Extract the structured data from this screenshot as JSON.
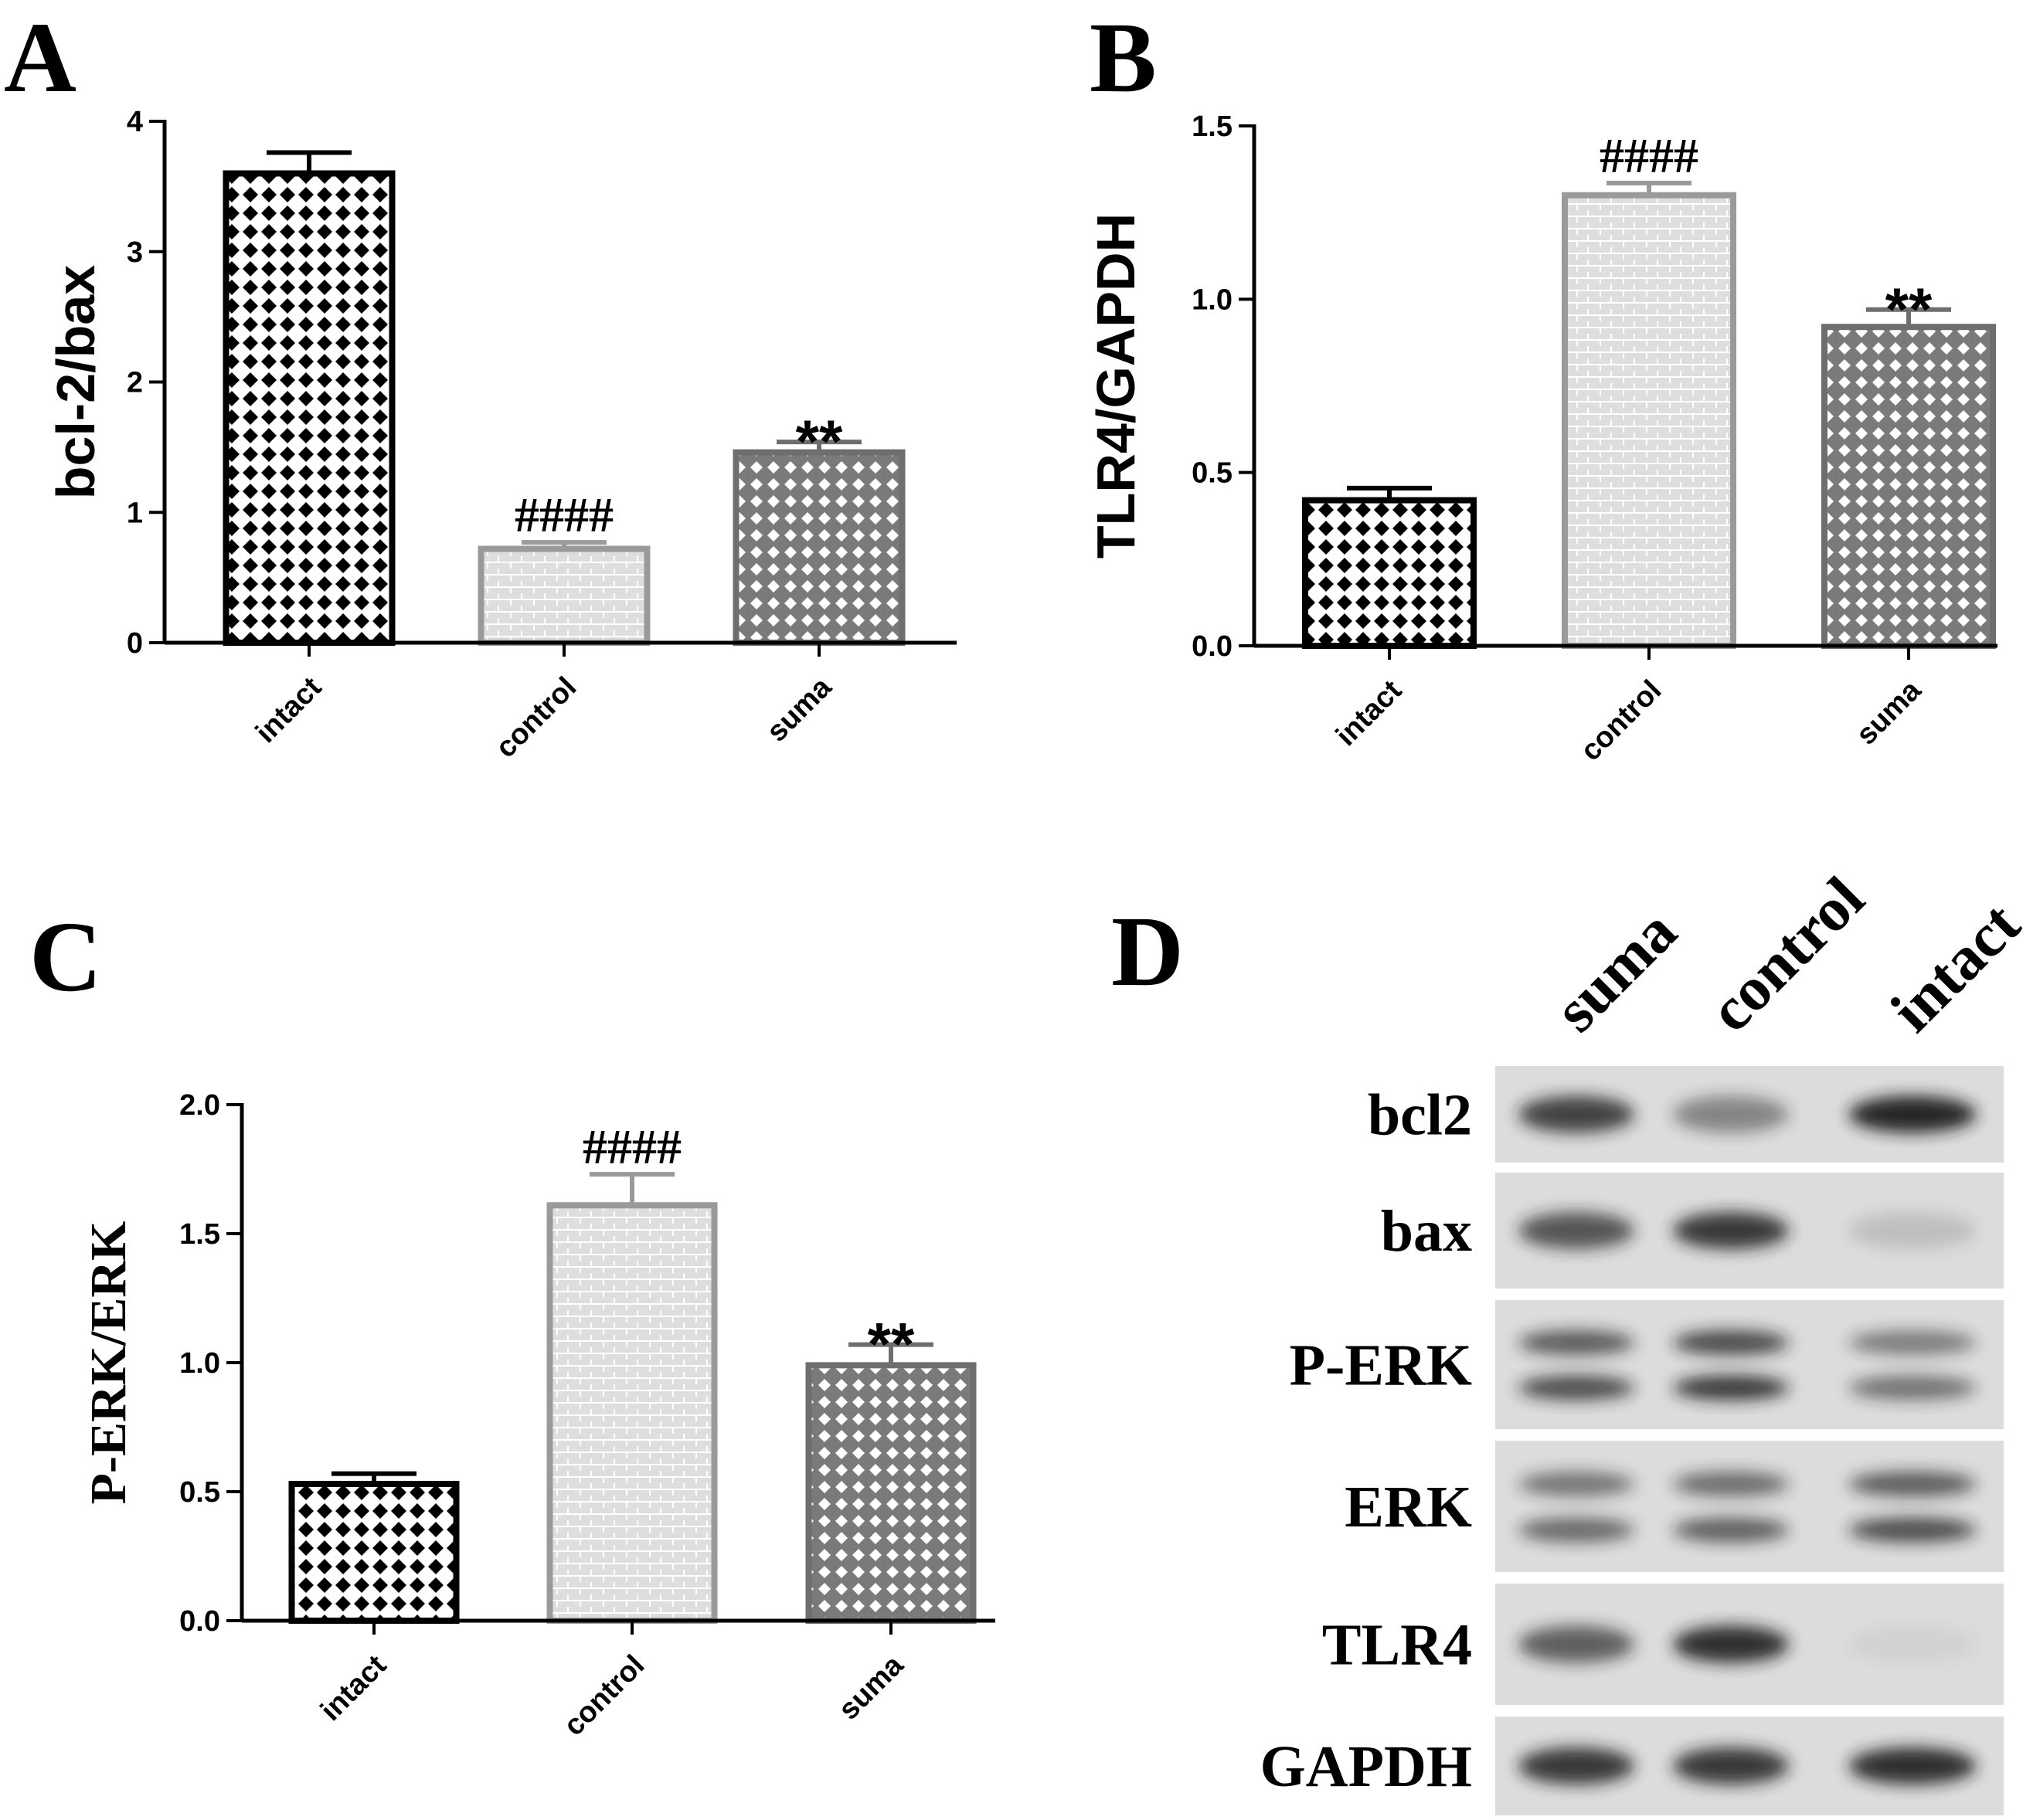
{
  "chart_data": [
    {
      "panel": "A",
      "type": "bar",
      "categories": [
        "intact",
        "control",
        "suma"
      ],
      "values": [
        3.6,
        0.72,
        1.46
      ],
      "errors": [
        0.16,
        0.05,
        0.08
      ],
      "annotations": [
        "",
        "####",
        "**"
      ],
      "ylabel": "bcl-2/bax",
      "ylim": [
        0,
        4
      ],
      "yticks": [
        "0",
        "1",
        "2",
        "3",
        "4"
      ],
      "ytick_values": [
        0,
        1,
        2,
        3,
        4
      ]
    },
    {
      "panel": "B",
      "type": "bar",
      "categories": [
        "intact",
        "control",
        "suma"
      ],
      "values": [
        0.42,
        1.3,
        0.92
      ],
      "errors": [
        0.035,
        0.035,
        0.05
      ],
      "annotations": [
        "",
        "####",
        "**"
      ],
      "ylabel": "TLR4/GAPDH",
      "ylim": [
        0,
        1.5
      ],
      "yticks": [
        "0.0",
        "0.5",
        "1.0",
        "1.5"
      ],
      "ytick_values": [
        0,
        0.5,
        1.0,
        1.5
      ]
    },
    {
      "panel": "C",
      "type": "bar",
      "categories": [
        "intact",
        "control",
        "suma"
      ],
      "values": [
        0.53,
        1.61,
        0.99
      ],
      "errors": [
        0.04,
        0.12,
        0.08
      ],
      "annotations": [
        "",
        "####",
        "**"
      ],
      "ylabel": "P-ERK/ERK",
      "ylim": [
        0,
        2.0
      ],
      "yticks": [
        "0.0",
        "0.5",
        "1.0",
        "1.5",
        "2.0"
      ],
      "ytick_values": [
        0,
        0.5,
        1.0,
        1.5,
        2.0
      ]
    }
  ],
  "blot": {
    "panel": "D",
    "lanes": [
      "suma",
      "control",
      "intact"
    ],
    "rows": [
      "bcl2",
      "bax",
      "P-ERK",
      "ERK",
      "TLR4",
      "GAPDH"
    ],
    "band_intensity": [
      [
        0.8,
        0.45,
        0.95
      ],
      [
        0.7,
        0.85,
        0.15
      ],
      [
        0.75,
        0.85,
        0.55
      ],
      [
        0.6,
        0.65,
        0.75
      ],
      [
        0.65,
        0.9,
        0.05
      ],
      [
        0.85,
        0.85,
        0.9
      ]
    ]
  },
  "colors": {
    "intact_border": "#000000",
    "control_border": "#9a9a9a",
    "suma_border": "#6e6e6e",
    "blot_background": "#dcdcdc",
    "band": "#1a1a1a"
  }
}
